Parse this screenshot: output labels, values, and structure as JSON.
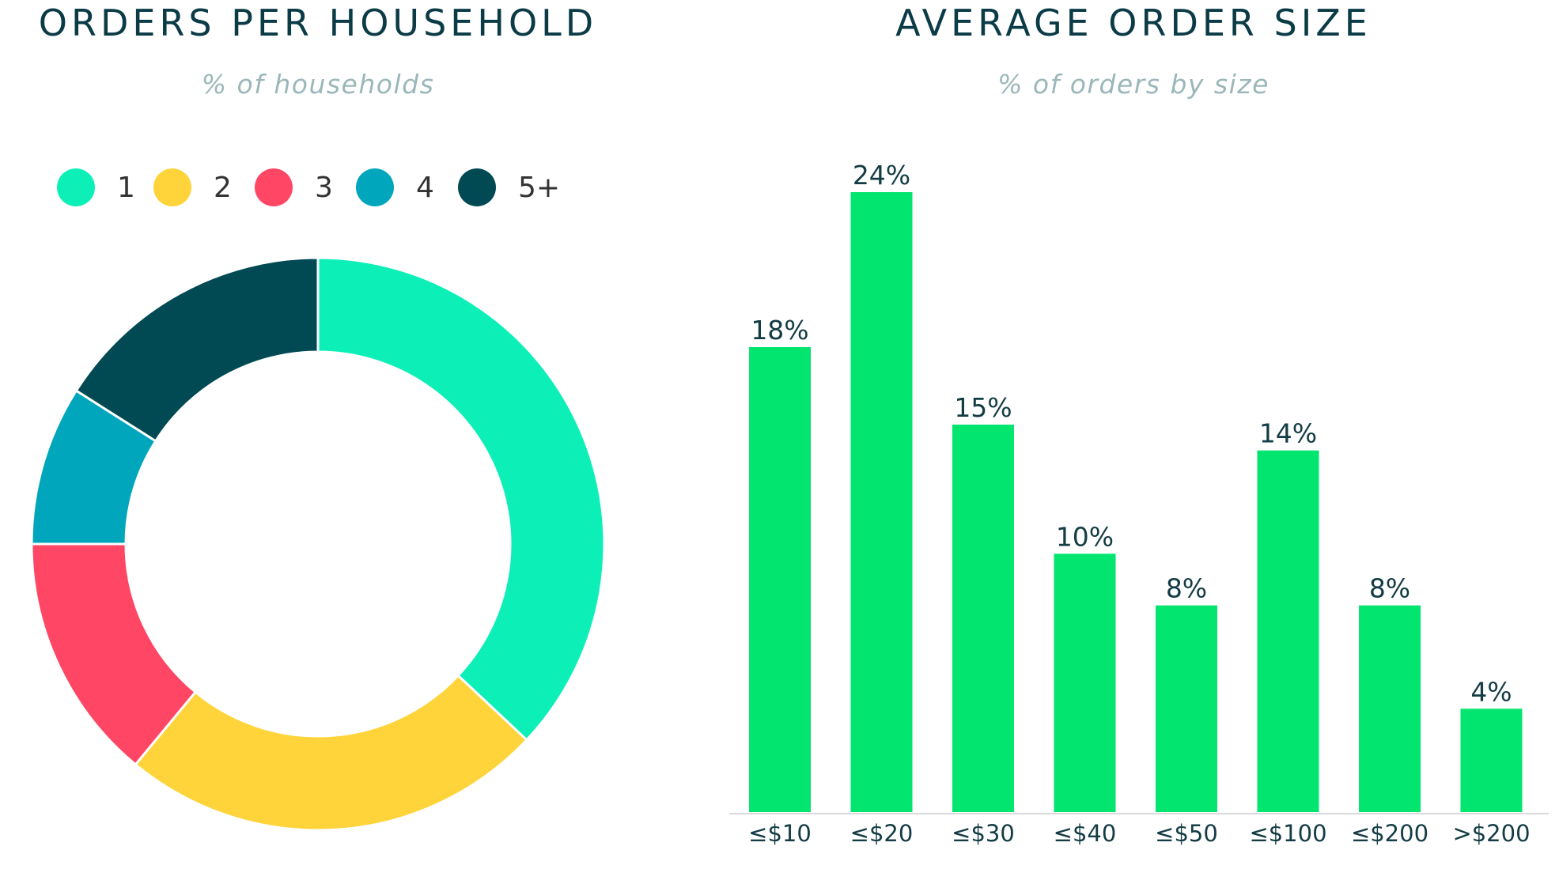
{
  "chart_data": [
    {
      "type": "pie",
      "style": "donut",
      "title": "ORDERS PER HOUSEHOLD",
      "subtitle": "% of households",
      "legend_position": "top",
      "series": [
        {
          "name": "1",
          "value": 37,
          "color": "#0cf0b8"
        },
        {
          "name": "2",
          "value": 24,
          "color": "#ffd43b"
        },
        {
          "name": "3",
          "value": 14,
          "color": "#ff4664"
        },
        {
          "name": "4",
          "value": 9,
          "color": "#00a6bc"
        },
        {
          "name": "5+",
          "value": 16,
          "color": "#014a54"
        }
      ]
    },
    {
      "type": "bar",
      "title": "AVERAGE ORDER SIZE",
      "subtitle": "% of orders by size",
      "categories": [
        "≤$10",
        "≤$20",
        "≤$30",
        "≤$40",
        "≤$50",
        "≤$100",
        "≤$200",
        ">$200"
      ],
      "values": [
        18,
        24,
        15,
        10,
        8,
        14,
        8,
        4
      ],
      "data_labels": [
        "18%",
        "24%",
        "15%",
        "10%",
        "8%",
        "14%",
        "8%",
        "4%"
      ],
      "ylim": [
        0,
        24
      ],
      "bar_color": "#02e56f",
      "grid": false
    }
  ]
}
